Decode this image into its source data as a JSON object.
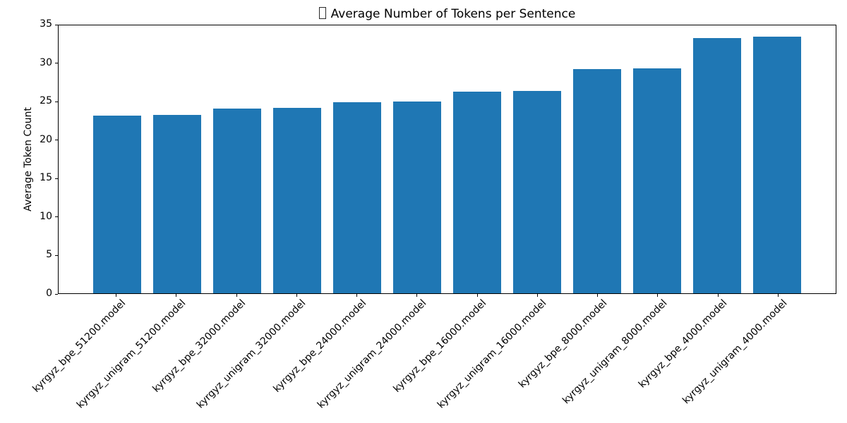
{
  "chart_data": {
    "type": "bar",
    "title": "Average Number of Tokens per Sentence",
    "title_prefix_icon": "missing-glyph-tofu",
    "xlabel": "",
    "ylabel": "Average Token Count",
    "categories": [
      "kyrgyz_bpe_51200.model",
      "kyrgyz_unigram_51200.model",
      "kyrgyz_bpe_32000.model",
      "kyrgyz_unigram_32000.model",
      "kyrgyz_bpe_24000.model",
      "kyrgyz_unigram_24000.model",
      "kyrgyz_bpe_16000.model",
      "kyrgyz_unigram_16000.model",
      "kyrgyz_bpe_8000.model",
      "kyrgyz_unigram_8000.model",
      "kyrgyz_bpe_4000.model",
      "kyrgyz_unigram_4000.model"
    ],
    "values": [
      23.2,
      23.3,
      24.1,
      24.2,
      25.0,
      25.1,
      26.3,
      26.4,
      29.3,
      29.4,
      33.3,
      33.5
    ],
    "ylim": [
      0,
      35
    ],
    "yticks": [
      0,
      5,
      10,
      15,
      20,
      25,
      30,
      35
    ],
    "x_tick_rotation_deg": 45,
    "grid": false,
    "legend": null,
    "bar_color": "#1f77b4",
    "axis_color": "#000000",
    "text_color": "#000000",
    "background_color": "#ffffff"
  }
}
